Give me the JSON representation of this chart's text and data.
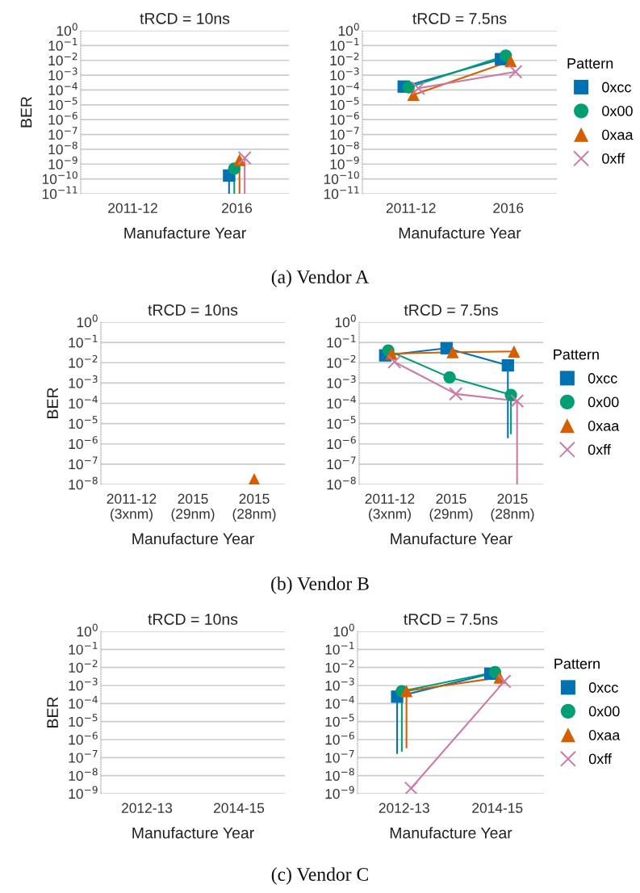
{
  "chart_data": [
    {
      "type": "line",
      "title": "tRCD = 10ns",
      "xlabel": "Manufacture Year",
      "ylabel": "BER",
      "categories": [
        "2011-12",
        "2016"
      ],
      "log": "y",
      "ylim": [
        1e-11,
        1
      ],
      "yticks": [
        {
          "value": 1,
          "label": "10$^{0}$"
        },
        {
          "value": 0.1,
          "label": "10$^{−1}$"
        },
        {
          "value": 0.01,
          "label": "10$^{−2}$"
        },
        {
          "value": 0.001,
          "label": "10$^{−3}$"
        },
        {
          "value": 0.0001,
          "label": "10$^{−4}$"
        },
        {
          "value": 1e-05,
          "label": "10$^{−5}$"
        },
        {
          "value": 1e-06,
          "label": "10$^{−6}$"
        },
        {
          "value": 1e-07,
          "label": "10$^{−7}$"
        },
        {
          "value": 1e-08,
          "label": "10$^{−8}$"
        },
        {
          "value": 1e-09,
          "label": "10$^{−9}$"
        },
        {
          "value": 1e-10,
          "label": "10$^{−10}$"
        },
        {
          "value": 1e-11,
          "label": "10$^{−11}$"
        }
      ],
      "grid": "y",
      "legend": false,
      "series": [
        {
          "color": "#0072b2",
          "marker": "square",
          "values": [
            null,
            1.7e-10
          ],
          "errors": [
            null,
            [
              1e-11,
              1.7e-10
            ]
          ]
        },
        {
          "color": "#009e73",
          "marker": "circle",
          "values": [
            null,
            5e-10
          ],
          "errors": [
            null,
            [
              1e-11,
              5e-10
            ]
          ]
        },
        {
          "color": "#d55e00",
          "marker": "triangle",
          "values": [
            null,
            1.9e-09
          ],
          "errors": [
            null,
            [
              1e-11,
              1.9e-09
            ]
          ]
        },
        {
          "color": "#cc79a7",
          "marker": "cross",
          "values": [
            null,
            2.6e-09
          ],
          "errors": [
            null,
            [
              1e-11,
              2.6e-09
            ]
          ]
        }
      ]
    },
    {
      "type": "line",
      "title": "tRCD = 7.5ns",
      "xlabel": "Manufacture Year",
      "categories": [
        "2011-12",
        "2016"
      ],
      "log": "y",
      "ylim": [
        1e-11,
        1
      ],
      "yticks": [
        {
          "value": 1,
          "label": "10$^{0}$"
        },
        {
          "value": 0.1,
          "label": "10$^{−1}$"
        },
        {
          "value": 0.01,
          "label": "10$^{−2}$"
        },
        {
          "value": 0.001,
          "label": "10$^{−3}$"
        },
        {
          "value": 0.0001,
          "label": "10$^{−4}$"
        },
        {
          "value": 1e-05,
          "label": "10$^{−5}$"
        },
        {
          "value": 1e-06,
          "label": "10$^{−6}$"
        },
        {
          "value": 1e-07,
          "label": "10$^{−7}$"
        },
        {
          "value": 1e-08,
          "label": "10$^{−8}$"
        },
        {
          "value": 1e-09,
          "label": "10$^{−9}$"
        },
        {
          "value": 1e-10,
          "label": "10$^{−10}$"
        },
        {
          "value": 1e-11,
          "label": "10$^{−11}$"
        }
      ],
      "grid": "y",
      "legend": "right",
      "legend_title": "Pattern",
      "annotations": [
        "(a) Vendor A"
      ],
      "series": [
        {
          "name": "0xcc",
          "color": "#0072b2",
          "marker": "square",
          "values": [
            0.00017,
            0.012
          ]
        },
        {
          "name": "0x00",
          "color": "#009e73",
          "marker": "circle",
          "values": [
            0.00015,
            0.021
          ]
        },
        {
          "name": "0xaa",
          "color": "#d55e00",
          "marker": "triangle",
          "values": [
            4.7e-05,
            0.009
          ]
        },
        {
          "name": "0xff",
          "color": "#cc79a7",
          "marker": "cross",
          "values": [
            0.00013,
            0.0017
          ]
        }
      ]
    },
    {
      "type": "line",
      "title": "tRCD = 10ns",
      "xlabel": "Manufacture Year",
      "ylabel": "BER",
      "categories": [
        "2011-12\n(3xnm)",
        "2015\n(29nm)",
        "2015\n(28nm)"
      ],
      "log": "y",
      "ylim": [
        1e-08,
        1
      ],
      "yticks": [
        {
          "value": 1,
          "label": "10$^{0}$"
        },
        {
          "value": 0.1,
          "label": "10$^{−1}$"
        },
        {
          "value": 0.01,
          "label": "10$^{−2}$"
        },
        {
          "value": 0.001,
          "label": "10$^{−3}$"
        },
        {
          "value": 0.0001,
          "label": "10$^{−4}$"
        },
        {
          "value": 1e-05,
          "label": "10$^{−5}$"
        },
        {
          "value": 1e-06,
          "label": "10$^{−6}$"
        },
        {
          "value": 1e-07,
          "label": "10$^{−7}$"
        },
        {
          "value": 1e-08,
          "label": "10$^{−8}$"
        }
      ],
      "grid": "y",
      "legend": false,
      "series": [
        {
          "color": "#d55e00",
          "marker": "triangle",
          "values": [
            null,
            null,
            1.8e-08
          ]
        }
      ]
    },
    {
      "type": "line",
      "title": "tRCD = 7.5ns",
      "xlabel": "Manufacture Year",
      "categories": [
        "2011-12\n(3xnm)",
        "2015\n(29nm)",
        "2015\n(28nm)"
      ],
      "log": "y",
      "ylim": [
        1e-08,
        1
      ],
      "yticks": [
        {
          "value": 1,
          "label": "10$^{0}$"
        },
        {
          "value": 0.1,
          "label": "10$^{−1}$"
        },
        {
          "value": 0.01,
          "label": "10$^{−2}$"
        },
        {
          "value": 0.001,
          "label": "10$^{−3}$"
        },
        {
          "value": 0.0001,
          "label": "10$^{−4}$"
        },
        {
          "value": 1e-05,
          "label": "10$^{−5}$"
        },
        {
          "value": 1e-06,
          "label": "10$^{−6}$"
        },
        {
          "value": 1e-07,
          "label": "10$^{−7}$"
        },
        {
          "value": 1e-08,
          "label": "10$^{−8}$"
        }
      ],
      "grid": "y",
      "legend": "right",
      "legend_title": "Pattern",
      "annotations": [
        "(b) Vendor B"
      ],
      "series": [
        {
          "name": "0xcc",
          "color": "#0072b2",
          "marker": "square",
          "values": [
            0.023,
            0.052,
            0.0074
          ],
          "errors": [
            null,
            null,
            [
              2.1e-06,
              0.0074
            ]
          ]
        },
        {
          "name": "0x00",
          "color": "#009e73",
          "marker": "circle",
          "values": [
            0.04,
            0.0019,
            0.00026
          ],
          "errors": [
            null,
            null,
            [
              3.3e-06,
              0.00026
            ]
          ]
        },
        {
          "name": "0xaa",
          "color": "#d55e00",
          "marker": "triangle",
          "values": [
            0.028,
            0.033,
            0.036
          ]
        },
        {
          "name": "0xff",
          "color": "#cc79a7",
          "marker": "cross",
          "values": [
            0.011,
            0.00029,
            0.00013
          ],
          "errors": [
            null,
            null,
            [
              1e-08,
              0.00013
            ]
          ]
        }
      ]
    },
    {
      "type": "line",
      "title": "tRCD = 10ns",
      "xlabel": "Manufacture Year",
      "ylabel": "BER",
      "categories": [
        "2012-13",
        "2014-15"
      ],
      "log": "y",
      "ylim": [
        1e-09,
        1
      ],
      "yticks": [
        {
          "value": 1,
          "label": "10$^{0}$"
        },
        {
          "value": 0.1,
          "label": "10$^{−1}$"
        },
        {
          "value": 0.01,
          "label": "10$^{−2}$"
        },
        {
          "value": 0.001,
          "label": "10$^{−3}$"
        },
        {
          "value": 0.0001,
          "label": "10$^{−4}$"
        },
        {
          "value": 1e-05,
          "label": "10$^{−5}$"
        },
        {
          "value": 1e-06,
          "label": "10$^{−6}$"
        },
        {
          "value": 1e-07,
          "label": "10$^{−7}$"
        },
        {
          "value": 1e-08,
          "label": "10$^{−8}$"
        },
        {
          "value": 1e-09,
          "label": "10$^{−9}$"
        }
      ],
      "grid": "y",
      "legend": false
    },
    {
      "type": "line",
      "title": "tRCD = 7.5ns",
      "xlabel": "Manufacture Year",
      "categories": [
        "2012-13",
        "2014-15"
      ],
      "log": "y",
      "ylim": [
        1e-09,
        1
      ],
      "yticks": [
        {
          "value": 1,
          "label": "10$^{0}$"
        },
        {
          "value": 0.1,
          "label": "10$^{−1}$"
        },
        {
          "value": 0.01,
          "label": "10$^{−2}$"
        },
        {
          "value": 0.001,
          "label": "10$^{−3}$"
        },
        {
          "value": 0.0001,
          "label": "10$^{−4}$"
        },
        {
          "value": 1e-05,
          "label": "10$^{−5}$"
        },
        {
          "value": 1e-06,
          "label": "10$^{−6}$"
        },
        {
          "value": 1e-07,
          "label": "10$^{−7}$"
        },
        {
          "value": 1e-08,
          "label": "10$^{−8}$"
        },
        {
          "value": 1e-09,
          "label": "10$^{−9}$"
        }
      ],
      "grid": "y",
      "legend": "right",
      "legend_title": "Pattern",
      "annotations": [
        "(c) Vendor C"
      ],
      "series": [
        {
          "name": "0xcc",
          "color": "#0072b2",
          "marker": "square",
          "values": [
            0.00024,
            0.0045
          ],
          "errors": [
            [
              1.8e-07,
              0.00024
            ],
            null
          ]
        },
        {
          "name": "0x00",
          "color": "#009e73",
          "marker": "circle",
          "values": [
            0.00048,
            0.0055
          ],
          "errors": [
            [
              2.4e-07,
              0.00048
            ],
            null
          ]
        },
        {
          "name": "0xaa",
          "color": "#d55e00",
          "marker": "triangle",
          "values": [
            0.00049,
            0.0028
          ],
          "errors": [
            [
              3.7e-07,
              0.00049
            ],
            null
          ]
        },
        {
          "name": "0xff",
          "color": "#cc79a7",
          "marker": "cross",
          "values": [
            2e-09,
            0.0017
          ]
        }
      ]
    }
  ]
}
